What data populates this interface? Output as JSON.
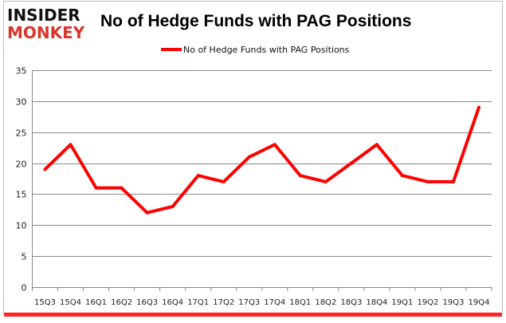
{
  "logo": {
    "line1": "INSIDER",
    "line2": "MONKEY"
  },
  "chart_data": {
    "type": "line",
    "title": "No of Hedge Funds with PAG Positions",
    "xlabel": "",
    "ylabel": "",
    "categories": [
      "15Q3",
      "15Q4",
      "16Q1",
      "16Q2",
      "16Q3",
      "16Q4",
      "17Q1",
      "17Q2",
      "17Q3",
      "17Q4",
      "18Q1",
      "18Q2",
      "18Q3",
      "18Q4",
      "19Q1",
      "19Q2",
      "19Q3",
      "19Q4"
    ],
    "series": [
      {
        "name": "No of Hedge Funds with PAG Positions",
        "color": "#ff0000",
        "values": [
          19,
          23,
          16,
          16,
          12,
          13,
          18,
          17,
          21,
          23,
          18,
          17,
          20,
          23,
          18,
          17,
          17,
          29
        ]
      }
    ],
    "ylim": [
      0,
      35
    ],
    "yticks": [
      0,
      5,
      10,
      15,
      20,
      25,
      30,
      35
    ],
    "grid": true,
    "legend": "top-center"
  }
}
